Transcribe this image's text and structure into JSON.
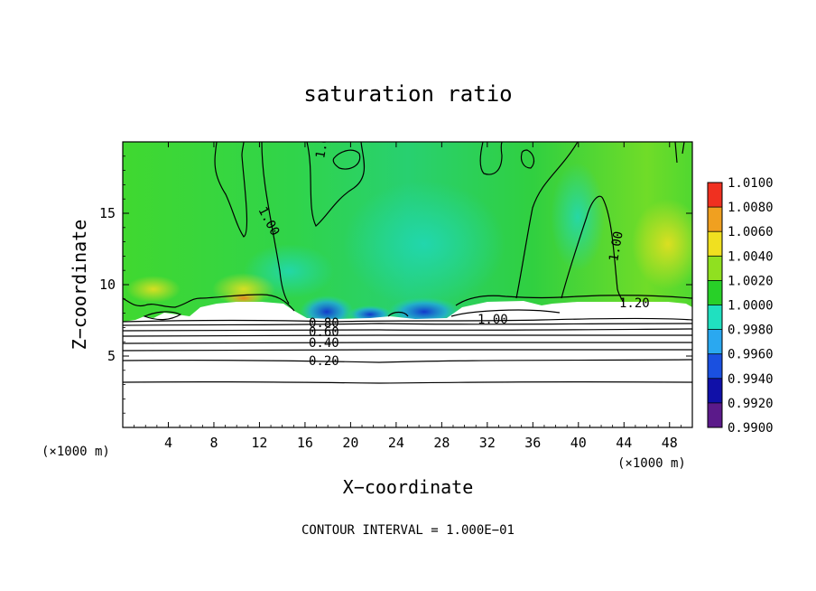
{
  "chart_data": {
    "type": "heatmap",
    "title": "saturation ratio",
    "xlabel": "X−coordinate",
    "ylabel": "Z−coordinate",
    "x_unit": "(×1000 m)",
    "z_unit": "(×1000 m)",
    "xlim": [
      0,
      50
    ],
    "ylim": [
      0,
      20
    ],
    "x_ticks": [
      4,
      8,
      12,
      16,
      20,
      24,
      28,
      32,
      36,
      40,
      44,
      48
    ],
    "x_tick_labels": [
      "4",
      "8",
      "12",
      "16",
      "20",
      "24",
      "28",
      "32",
      "36",
      "40",
      "44",
      "48"
    ],
    "y_ticks": [
      5,
      10,
      15
    ],
    "y_tick_labels": [
      "5",
      "10",
      "15"
    ],
    "colorbar": {
      "min": 0.99,
      "max": 1.01,
      "levels": [
        0.99,
        0.992,
        0.994,
        0.996,
        0.998,
        1.0,
        1.002,
        1.004,
        1.006,
        1.008,
        1.01
      ],
      "labels": [
        "0.9900",
        "0.9920",
        "0.9940",
        "0.9960",
        "0.9980",
        "1.0000",
        "1.0020",
        "1.0040",
        "1.0060",
        "1.0080",
        "1.0100"
      ],
      "colors": [
        "#5b1a8a",
        "#1010a8",
        "#1a50e0",
        "#2aa8f0",
        "#20e0c0",
        "#28d028",
        "#90e020",
        "#f0e020",
        "#f0a020",
        "#f03020",
        "#f08080"
      ]
    },
    "field_summary": {
      "upper_region_value": 1.0,
      "low_saturation_min_x": [
        16,
        28
      ],
      "high_saturation_x": [
        8,
        14
      ]
    },
    "contour_lines": [
      {
        "value": 1.0,
        "label": "1.00"
      },
      {
        "value": 1.0,
        "label": "1.00"
      },
      {
        "value": 1.0,
        "label": "1.00"
      },
      {
        "value": 1.0,
        "label": "1.00"
      },
      {
        "value": 1.2,
        "label": "1.20"
      },
      {
        "value": 0.8,
        "label": "0.80"
      },
      {
        "value": 0.6,
        "label": "0.60"
      },
      {
        "value": 0.4,
        "label": "0.40"
      },
      {
        "value": 0.2,
        "label": "0.20"
      }
    ],
    "contour_interval_note": "CONTOUR INTERVAL = 1.000E−01"
  },
  "colors": {
    "background": "#ffffff",
    "axis": "#000000",
    "field_base": "#30d030"
  }
}
